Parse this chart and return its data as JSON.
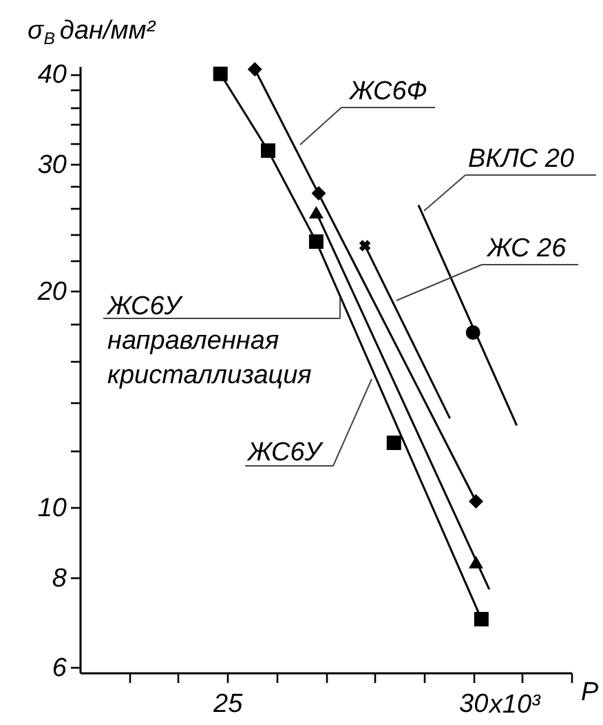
{
  "chart_data": {
    "type": "line",
    "xlabel": "P",
    "ylabel": "σ$_{B}$ дан/мм²",
    "log": "y",
    "grid": false,
    "xlim": [
      22,
      32
    ],
    "ylim": [
      5.9,
      41
    ],
    "annotations": [
      "x10³"
    ],
    "xticks": [
      {
        "value": 23,
        "label": null
      },
      {
        "value": 24,
        "label": null
      },
      25,
      {
        "value": 26,
        "label": null
      },
      {
        "value": 27,
        "label": null
      },
      {
        "value": 28,
        "label": null
      },
      {
        "value": 29,
        "label": null
      },
      30,
      {
        "value": 31,
        "label": null
      },
      {
        "value": 32,
        "label": null
      }
    ],
    "yticks": [
      6,
      8,
      10,
      {
        "value": 12,
        "label": null
      },
      {
        "value": 14,
        "label": null
      },
      {
        "value": 16,
        "label": null
      },
      {
        "value": 18,
        "label": null
      },
      20,
      {
        "value": 22,
        "label": null
      },
      {
        "value": 24,
        "label": null
      },
      {
        "value": 26,
        "label": null
      },
      {
        "value": 28,
        "label": null
      },
      30,
      {
        "value": 32,
        "label": null
      },
      {
        "value": 34,
        "label": null
      },
      {
        "value": 36,
        "label": null
      },
      {
        "value": 38,
        "label": null
      },
      40
    ],
    "series": [
      {
        "name": "ЖС6У",
        "color": "#000000",
        "line_style": "solid",
        "x": [
          24.86,
          25.83,
          26.81,
          30.17
        ],
        "values": [
          40,
          31.3,
          23.4,
          7.0
        ]
      },
      {
        "name": "ЖС6У направленная кристаллизация",
        "color": "#000000",
        "line_style": "solid",
        "x": [
          26.81,
          30.33
        ],
        "values": [
          25.7,
          7.7
        ]
      },
      {
        "name": "ЖС6Ф",
        "color": "#000000",
        "line_style": "solid",
        "x": [
          25.56,
          30.06
        ],
        "values": [
          40.6,
          10.2
        ]
      },
      {
        "name": "ЖС 26",
        "color": "#000000",
        "line_style": "solid",
        "x": [
          27.8,
          29.53
        ],
        "values": [
          23.1,
          13.3
        ]
      },
      {
        "name": "ВКЛС 20",
        "color": "#000000",
        "line_style": "solid",
        "x": [
          28.89,
          30.89
        ],
        "values": [
          26.3,
          13.0
        ]
      },
      {
        "type": "scatter",
        "marker": "square",
        "color": "#000000",
        "x": [
          24.86,
          25.83,
          26.81,
          28.39,
          30.17
        ],
        "values": [
          40,
          31.3,
          23.4,
          12.3,
          7.0
        ]
      },
      {
        "type": "scatter",
        "marker": "triangle",
        "color": "#000000",
        "x": [
          26.81,
          30.06
        ],
        "values": [
          25.7,
          8.4
        ]
      },
      {
        "type": "scatter",
        "marker": "diamond",
        "color": "#000000",
        "x": [
          25.56,
          26.86,
          30.06
        ],
        "values": [
          40.6,
          27.3,
          10.2
        ]
      },
      {
        "type": "scatter",
        "marker": "cross",
        "color": "#000000",
        "x": [
          27.8
        ],
        "values": [
          23.1
        ]
      },
      {
        "type": "scatter",
        "marker": "circle",
        "color": "#000000",
        "x": [
          30.0
        ],
        "values": [
          17.5
        ]
      }
    ]
  }
}
